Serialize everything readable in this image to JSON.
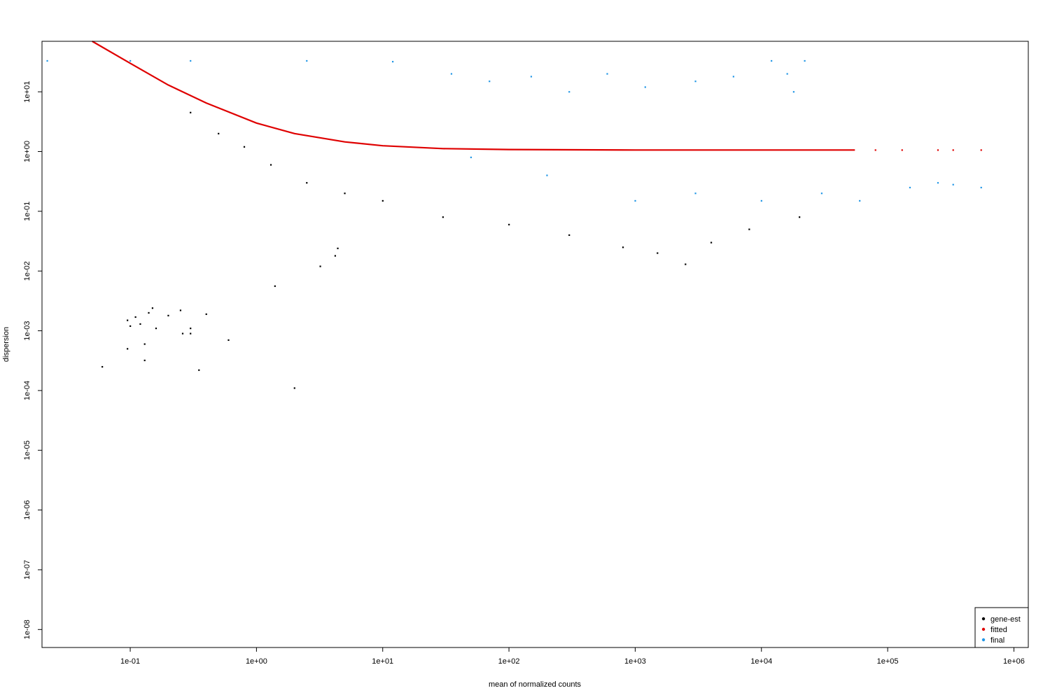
{
  "chart_data": {
    "type": "scatter",
    "title": "",
    "xlabel": "mean of normalized counts",
    "ylabel": "dispersion",
    "x_scale": "log10",
    "y_scale": "log10",
    "xlim": [
      0.02,
      1300000
    ],
    "ylim": [
      5e-09,
      70
    ],
    "x_ticks": [
      {
        "value": 0.1,
        "label": "1e-01"
      },
      {
        "value": 1,
        "label": "1e+00"
      },
      {
        "value": 10,
        "label": "1e+01"
      },
      {
        "value": 100,
        "label": "1e+02"
      },
      {
        "value": 1000,
        "label": "1e+03"
      },
      {
        "value": 10000,
        "label": "1e+04"
      },
      {
        "value": 100000,
        "label": "1e+05"
      },
      {
        "value": 1000000,
        "label": "1e+06"
      }
    ],
    "y_ticks": [
      {
        "value": 10,
        "label": "1e+01"
      },
      {
        "value": 1,
        "label": "1e+00"
      },
      {
        "value": 0.1,
        "label": "1e-01"
      },
      {
        "value": 0.01,
        "label": "1e-02"
      },
      {
        "value": 0.001,
        "label": "1e-03"
      },
      {
        "value": 0.0001,
        "label": "1e-04"
      },
      {
        "value": 1e-05,
        "label": "1e-05"
      },
      {
        "value": 1e-06,
        "label": "1e-06"
      },
      {
        "value": 1e-07,
        "label": "1e-07"
      },
      {
        "value": 1e-08,
        "label": "1e-08"
      }
    ],
    "legend_position": "bottom-right",
    "series": [
      {
        "name": "gene-est",
        "color": "#000000",
        "points": [
          [
            0.06,
            0.00025
          ],
          [
            0.095,
            0.0015
          ],
          [
            0.1,
            0.0012
          ],
          [
            0.11,
            0.0017
          ],
          [
            0.12,
            0.0013
          ],
          [
            0.13,
            0.0006
          ],
          [
            0.14,
            0.002
          ],
          [
            0.15,
            0.0024
          ],
          [
            0.16,
            0.0011
          ],
          [
            0.2,
            0.0018
          ],
          [
            0.25,
            0.0022
          ],
          [
            0.3,
            0.0011
          ],
          [
            0.35,
            0.00022
          ],
          [
            0.4,
            0.0019
          ],
          [
            0.6,
            0.0007
          ],
          [
            0.095,
            0.0005
          ],
          [
            0.13,
            0.00032
          ],
          [
            0.26,
            0.0009
          ],
          [
            0.3,
            0.0009
          ],
          [
            1.4,
            0.0056
          ],
          [
            2.0,
            0.00011
          ],
          [
            3.2,
            0.012
          ],
          [
            4.2,
            0.018
          ],
          [
            4.4,
            0.024
          ],
          [
            0.3,
            4.5
          ],
          [
            0.5,
            2.0
          ],
          [
            0.8,
            1.2
          ],
          [
            1.3,
            0.6
          ],
          [
            2.5,
            0.3
          ],
          [
            5,
            0.2
          ],
          [
            10,
            0.15
          ],
          [
            30,
            0.08
          ],
          [
            100,
            0.06
          ],
          [
            300,
            0.04
          ],
          [
            800,
            0.025
          ],
          [
            1500,
            0.02
          ],
          [
            2500,
            0.013
          ],
          [
            4000,
            0.03
          ],
          [
            8000,
            0.05
          ],
          [
            20000,
            0.08
          ]
        ]
      },
      {
        "name": "fitted",
        "color": "#DF0000",
        "points": [
          [
            0.05,
            70
          ],
          [
            0.1,
            30
          ],
          [
            0.2,
            13
          ],
          [
            0.4,
            6.5
          ],
          [
            1,
            3.0
          ],
          [
            2,
            2.0
          ],
          [
            5,
            1.45
          ],
          [
            10,
            1.25
          ],
          [
            30,
            1.12
          ],
          [
            100,
            1.08
          ],
          [
            1000,
            1.06
          ],
          [
            10000,
            1.06
          ],
          [
            55000,
            1.06
          ],
          [
            80000,
            1.06
          ],
          [
            130000,
            1.06
          ],
          [
            250000,
            1.06
          ],
          [
            330000,
            1.06
          ],
          [
            550000,
            1.06
          ]
        ]
      },
      {
        "name": "final",
        "color": "#2297E6",
        "points": [
          [
            0.022,
            33
          ],
          [
            0.1,
            33
          ],
          [
            0.3,
            33
          ],
          [
            2.5,
            33
          ],
          [
            12,
            32
          ],
          [
            35,
            20
          ],
          [
            70,
            15
          ],
          [
            150,
            18
          ],
          [
            300,
            10
          ],
          [
            600,
            20
          ],
          [
            1200,
            12
          ],
          [
            3000,
            15
          ],
          [
            6000,
            18
          ],
          [
            12000,
            33
          ],
          [
            16000,
            20
          ],
          [
            18000,
            10
          ],
          [
            22000,
            33
          ],
          [
            50,
            0.8
          ],
          [
            200,
            0.4
          ],
          [
            1000,
            0.15
          ],
          [
            3000,
            0.2
          ],
          [
            10000,
            0.15
          ],
          [
            30000,
            0.2
          ],
          [
            60000,
            0.15
          ],
          [
            150000,
            0.25
          ],
          [
            250000,
            0.3
          ],
          [
            330000,
            0.28
          ],
          [
            550000,
            0.25
          ]
        ]
      }
    ],
    "legend": [
      {
        "label": "gene-est",
        "color": "#000000"
      },
      {
        "label": "fitted",
        "color": "#DF0000"
      },
      {
        "label": "final",
        "color": "#2297E6"
      }
    ]
  }
}
